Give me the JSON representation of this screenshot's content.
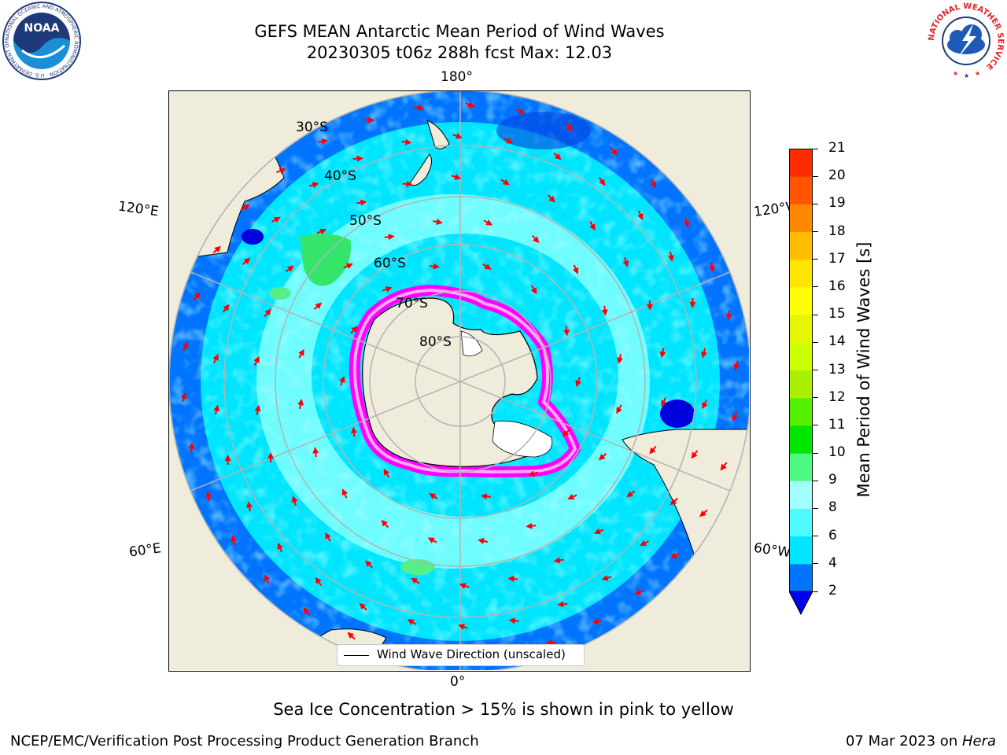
{
  "header": {
    "title_line1": "GEFS MEAN Antarctic Mean Period of Wind Waves",
    "title_line2": "20230305 t06z 288h fcst   Max: 12.03"
  },
  "logos": {
    "noaa_text": "NOAA",
    "noaa_ring_text": "NATIONAL OCEANIC AND ATMOSPHERIC ADMINISTRATION · U.S. DEPARTMENT OF COMMERCE",
    "nws_ring_text": "NATIONAL WEATHER SERVICE"
  },
  "map": {
    "projection": "south-polar-stereographic",
    "longitude_labels": {
      "top": "180°",
      "bottom": "0°",
      "left_upper": "120°E",
      "left_lower": "60°E",
      "right_upper": "120°W",
      "right_lower": "60°W"
    },
    "latitude_labels": [
      "30°S",
      "40°S",
      "50°S",
      "60°S",
      "70°S",
      "80°S"
    ],
    "colors": {
      "land": "#efecdb",
      "ocean_dark": "#0074ff",
      "ocean_mid": "#00e5ff",
      "ocean_light": "#6ffcff",
      "green": "#33e66a",
      "ice_pink": "#ff00ff",
      "ice_white": "#ffffff",
      "arrow": "#ff0000",
      "grid": "#b3b3b3"
    },
    "legend_label": "Wind Wave Direction (unscaled)",
    "legend_icon": "line-icon"
  },
  "colorbar": {
    "label": "Mean Period of Wind Waves [s]",
    "ticks": [
      "2",
      "4",
      "6",
      "8",
      "9",
      "10",
      "11",
      "12",
      "13",
      "14",
      "15",
      "16",
      "17",
      "18",
      "19",
      "20",
      "21"
    ],
    "colors": [
      "#0074ff",
      "#00e5ff",
      "#4ffaff",
      "#a3ffff",
      "#4dfa82",
      "#00e600",
      "#55f000",
      "#a8f000",
      "#ccff00",
      "#e6f500",
      "#ffff00",
      "#ffe600",
      "#ffbb00",
      "#ff8800",
      "#ff5500",
      "#ff2a00"
    ],
    "extend_color": "#0000ee",
    "extend": "min"
  },
  "footer": {
    "sea_ice_note": "Sea Ice Concentration > 15% is shown in pink to yellow",
    "credit_left": "NCEP/EMC/Verification Post Processing Product Generation Branch",
    "credit_right_date": "07 Mar 2023 on ",
    "credit_right_host": "Hera"
  }
}
